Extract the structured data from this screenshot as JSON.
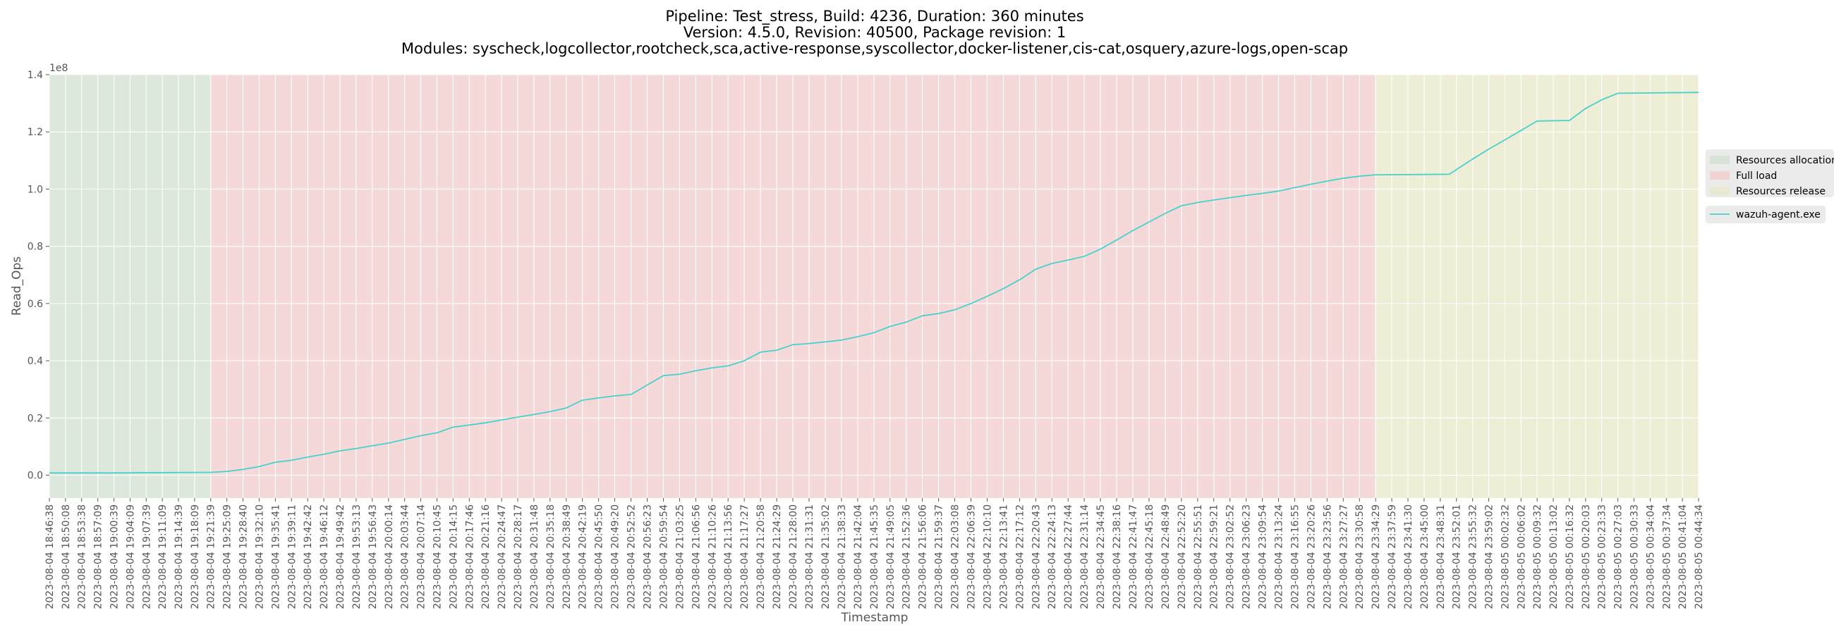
{
  "title_lines": [
    "Pipeline: Test_stress, Build: 4236, Duration: 360 minutes",
    "Version: 4.5.0, Revision: 40500, Package revision: 1",
    "Modules: syscheck,logcollector,rootcheck,sca,active-response,syscollector,docker-listener,cis-cat,osquery,azure-logs,open-scap"
  ],
  "chart_data": {
    "type": "line",
    "xlabel": "Timestamp",
    "ylabel": "Read_Ops",
    "y_offset_label": "1e8",
    "y_scale": 100000000,
    "ylim": [
      -0.08,
      1.4
    ],
    "yticks": [
      0.0,
      0.2,
      0.4,
      0.6,
      0.8,
      1.0,
      1.2,
      1.4
    ],
    "ytick_labels": [
      "0.0",
      "0.2",
      "0.4",
      "0.6",
      "0.8",
      "1.0",
      "1.2",
      "1.4"
    ],
    "grid": true,
    "legend_placement": "right, outside plot",
    "phases": [
      {
        "name": "Resources allocation",
        "start": "2023-08-04 18:46:38",
        "end": "2023-08-04 19:21:39",
        "color": "#cfe0cf"
      },
      {
        "name": "Full load",
        "start": "2023-08-04 19:21:39",
        "end": "2023-08-04 23:34:29",
        "color": "#f2cccc"
      },
      {
        "name": "Resources release",
        "start": "2023-08-04 23:34:29",
        "end": "2023-08-05 00:44:34",
        "color": "#e8e8c8"
      }
    ],
    "x_tick_labels": [
      "2023-08-04 18:46:38",
      "2023-08-04 18:50:08",
      "2023-08-04 18:53:38",
      "2023-08-04 18:57:09",
      "2023-08-04 19:00:39",
      "2023-08-04 19:04:09",
      "2023-08-04 19:07:39",
      "2023-08-04 19:11:09",
      "2023-08-04 19:14:39",
      "2023-08-04 19:18:09",
      "2023-08-04 19:21:39",
      "2023-08-04 19:25:09",
      "2023-08-04 19:28:40",
      "2023-08-04 19:32:10",
      "2023-08-04 19:35:41",
      "2023-08-04 19:39:11",
      "2023-08-04 19:42:42",
      "2023-08-04 19:46:12",
      "2023-08-04 19:49:42",
      "2023-08-04 19:53:13",
      "2023-08-04 19:56:43",
      "2023-08-04 20:00:14",
      "2023-08-04 20:03:44",
      "2023-08-04 20:07:14",
      "2023-08-04 20:10:45",
      "2023-08-04 20:14:15",
      "2023-08-04 20:17:46",
      "2023-08-04 20:21:16",
      "2023-08-04 20:24:47",
      "2023-08-04 20:28:17",
      "2023-08-04 20:31:48",
      "2023-08-04 20:35:18",
      "2023-08-04 20:38:49",
      "2023-08-04 20:42:19",
      "2023-08-04 20:45:50",
      "2023-08-04 20:49:20",
      "2023-08-04 20:52:52",
      "2023-08-04 20:56:23",
      "2023-08-04 20:59:54",
      "2023-08-04 21:03:25",
      "2023-08-04 21:06:56",
      "2023-08-04 21:10:26",
      "2023-08-04 21:13:56",
      "2023-08-04 21:17:27",
      "2023-08-04 21:20:58",
      "2023-08-04 21:24:29",
      "2023-08-04 21:28:00",
      "2023-08-04 21:31:31",
      "2023-08-04 21:35:02",
      "2023-08-04 21:38:33",
      "2023-08-04 21:42:04",
      "2023-08-04 21:45:35",
      "2023-08-04 21:49:05",
      "2023-08-04 21:52:36",
      "2023-08-04 21:56:06",
      "2023-08-04 21:59:37",
      "2023-08-04 22:03:08",
      "2023-08-04 22:06:39",
      "2023-08-04 22:10:10",
      "2023-08-04 22:13:41",
      "2023-08-04 22:17:12",
      "2023-08-04 22:20:43",
      "2023-08-04 22:24:13",
      "2023-08-04 22:27:44",
      "2023-08-04 22:31:14",
      "2023-08-04 22:34:45",
      "2023-08-04 22:38:16",
      "2023-08-04 22:41:47",
      "2023-08-04 22:45:18",
      "2023-08-04 22:48:49",
      "2023-08-04 22:52:20",
      "2023-08-04 22:55:51",
      "2023-08-04 22:59:21",
      "2023-08-04 23:02:52",
      "2023-08-04 23:06:23",
      "2023-08-04 23:09:54",
      "2023-08-04 23:13:24",
      "2023-08-04 23:16:55",
      "2023-08-04 23:20:26",
      "2023-08-04 23:23:56",
      "2023-08-04 23:27:27",
      "2023-08-04 23:30:58",
      "2023-08-04 23:34:29",
      "2023-08-04 23:37:59",
      "2023-08-04 23:41:30",
      "2023-08-04 23:45:00",
      "2023-08-04 23:48:31",
      "2023-08-04 23:52:01",
      "2023-08-04 23:55:32",
      "2023-08-04 23:59:02",
      "2023-08-05 00:02:32",
      "2023-08-05 00:06:02",
      "2023-08-05 00:09:32",
      "2023-08-05 00:13:02",
      "2023-08-05 00:16:32",
      "2023-08-05 00:20:03",
      "2023-08-05 00:23:33",
      "2023-08-05 00:27:03",
      "2023-08-05 00:30:33",
      "2023-08-05 00:34:04",
      "2023-08-05 00:37:34",
      "2023-08-05 00:41:04",
      "2023-08-05 00:44:34"
    ],
    "series": [
      {
        "name": "wazuh-agent.exe",
        "color": "#48d1cc",
        "points": [
          {
            "x": "2023-08-04 18:46:38",
            "y": 0.008
          },
          {
            "x": "2023-08-04 19:00:39",
            "y": 0.008
          },
          {
            "x": "2023-08-04 19:21:39",
            "y": 0.01
          },
          {
            "x": "2023-08-04 19:25:09",
            "y": 0.013
          },
          {
            "x": "2023-08-04 19:28:40",
            "y": 0.02
          },
          {
            "x": "2023-08-04 19:32:10",
            "y": 0.03
          },
          {
            "x": "2023-08-04 19:35:41",
            "y": 0.045
          },
          {
            "x": "2023-08-04 19:39:11",
            "y": 0.052
          },
          {
            "x": "2023-08-04 19:42:42",
            "y": 0.063
          },
          {
            "x": "2023-08-04 19:46:12",
            "y": 0.073
          },
          {
            "x": "2023-08-04 19:49:42",
            "y": 0.085
          },
          {
            "x": "2023-08-04 19:53:13",
            "y": 0.093
          },
          {
            "x": "2023-08-04 19:56:43",
            "y": 0.103
          },
          {
            "x": "2023-08-04 20:00:14",
            "y": 0.112
          },
          {
            "x": "2023-08-04 20:03:44",
            "y": 0.125
          },
          {
            "x": "2023-08-04 20:07:14",
            "y": 0.138
          },
          {
            "x": "2023-08-04 20:10:45",
            "y": 0.148
          },
          {
            "x": "2023-08-04 20:14:15",
            "y": 0.168
          },
          {
            "x": "2023-08-04 20:17:46",
            "y": 0.175
          },
          {
            "x": "2023-08-04 20:21:16",
            "y": 0.183
          },
          {
            "x": "2023-08-04 20:24:47",
            "y": 0.193
          },
          {
            "x": "2023-08-04 20:28:17",
            "y": 0.203
          },
          {
            "x": "2023-08-04 20:31:48",
            "y": 0.212
          },
          {
            "x": "2023-08-04 20:35:18",
            "y": 0.222
          },
          {
            "x": "2023-08-04 20:38:49",
            "y": 0.235
          },
          {
            "x": "2023-08-04 20:42:19",
            "y": 0.262
          },
          {
            "x": "2023-08-04 20:45:50",
            "y": 0.27
          },
          {
            "x": "2023-08-04 20:49:20",
            "y": 0.277
          },
          {
            "x": "2023-08-04 20:52:52",
            "y": 0.282
          },
          {
            "x": "2023-08-04 20:56:23",
            "y": 0.315
          },
          {
            "x": "2023-08-04 20:59:54",
            "y": 0.348
          },
          {
            "x": "2023-08-04 21:03:25",
            "y": 0.353
          },
          {
            "x": "2023-08-04 21:06:56",
            "y": 0.365
          },
          {
            "x": "2023-08-04 21:10:26",
            "y": 0.375
          },
          {
            "x": "2023-08-04 21:13:56",
            "y": 0.382
          },
          {
            "x": "2023-08-04 21:17:27",
            "y": 0.4
          },
          {
            "x": "2023-08-04 21:20:58",
            "y": 0.43
          },
          {
            "x": "2023-08-04 21:24:29",
            "y": 0.437
          },
          {
            "x": "2023-08-04 21:28:00",
            "y": 0.456
          },
          {
            "x": "2023-08-04 21:31:31",
            "y": 0.46
          },
          {
            "x": "2023-08-04 21:35:02",
            "y": 0.466
          },
          {
            "x": "2023-08-04 21:38:33",
            "y": 0.472
          },
          {
            "x": "2023-08-04 21:42:04",
            "y": 0.484
          },
          {
            "x": "2023-08-04 21:45:35",
            "y": 0.498
          },
          {
            "x": "2023-08-04 21:49:05",
            "y": 0.52
          },
          {
            "x": "2023-08-04 21:52:36",
            "y": 0.535
          },
          {
            "x": "2023-08-04 21:56:06",
            "y": 0.557
          },
          {
            "x": "2023-08-04 21:59:37",
            "y": 0.565
          },
          {
            "x": "2023-08-04 22:03:08",
            "y": 0.578
          },
          {
            "x": "2023-08-04 22:06:39",
            "y": 0.6
          },
          {
            "x": "2023-08-04 22:10:10",
            "y": 0.625
          },
          {
            "x": "2023-08-04 22:13:41",
            "y": 0.652
          },
          {
            "x": "2023-08-04 22:17:12",
            "y": 0.683
          },
          {
            "x": "2023-08-04 22:20:43",
            "y": 0.72
          },
          {
            "x": "2023-08-04 22:24:13",
            "y": 0.74
          },
          {
            "x": "2023-08-04 22:27:44",
            "y": 0.752
          },
          {
            "x": "2023-08-04 22:31:14",
            "y": 0.765
          },
          {
            "x": "2023-08-04 22:34:45",
            "y": 0.79
          },
          {
            "x": "2023-08-04 22:38:16",
            "y": 0.822
          },
          {
            "x": "2023-08-04 22:41:47",
            "y": 0.855
          },
          {
            "x": "2023-08-04 22:45:18",
            "y": 0.885
          },
          {
            "x": "2023-08-04 22:48:49",
            "y": 0.915
          },
          {
            "x": "2023-08-04 22:52:20",
            "y": 0.942
          },
          {
            "x": "2023-08-04 22:55:51",
            "y": 0.953
          },
          {
            "x": "2023-08-04 22:59:21",
            "y": 0.962
          },
          {
            "x": "2023-08-04 23:02:52",
            "y": 0.97
          },
          {
            "x": "2023-08-04 23:06:23",
            "y": 0.978
          },
          {
            "x": "2023-08-04 23:09:54",
            "y": 0.985
          },
          {
            "x": "2023-08-04 23:13:24",
            "y": 0.993
          },
          {
            "x": "2023-08-04 23:16:55",
            "y": 1.005
          },
          {
            "x": "2023-08-04 23:20:26",
            "y": 1.017
          },
          {
            "x": "2023-08-04 23:23:56",
            "y": 1.028
          },
          {
            "x": "2023-08-04 23:27:27",
            "y": 1.038
          },
          {
            "x": "2023-08-04 23:30:58",
            "y": 1.045
          },
          {
            "x": "2023-08-04 23:34:29",
            "y": 1.05
          },
          {
            "x": "2023-08-04 23:45:00",
            "y": 1.051
          },
          {
            "x": "2023-08-04 23:50:30",
            "y": 1.052
          },
          {
            "x": "2023-08-04 23:55:32",
            "y": 1.105
          },
          {
            "x": "2023-08-04 23:59:02",
            "y": 1.14
          },
          {
            "x": "2023-08-05 00:02:32",
            "y": 1.172
          },
          {
            "x": "2023-08-05 00:06:02",
            "y": 1.205
          },
          {
            "x": "2023-08-05 00:09:32",
            "y": 1.238
          },
          {
            "x": "2023-08-05 00:16:32",
            "y": 1.24
          },
          {
            "x": "2023-08-05 00:20:03",
            "y": 1.282
          },
          {
            "x": "2023-08-05 00:23:33",
            "y": 1.312
          },
          {
            "x": "2023-08-05 00:27:03",
            "y": 1.335
          },
          {
            "x": "2023-08-05 00:44:34",
            "y": 1.338
          }
        ]
      }
    ]
  }
}
